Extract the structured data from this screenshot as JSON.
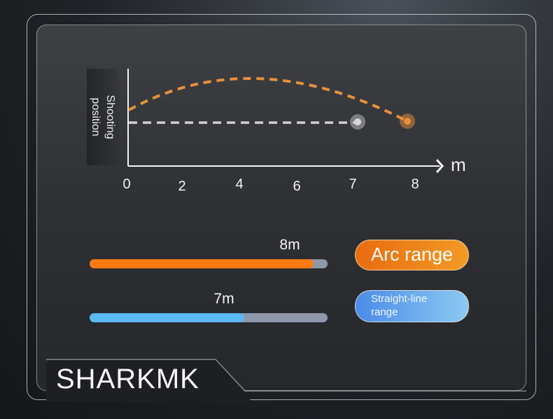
{
  "diagram": {
    "y_axis_label": "Shooting\nposition",
    "x_unit": "m",
    "x_ticks": [
      "0",
      "2",
      "4",
      "6",
      "7",
      "8"
    ],
    "arc_landing": 8,
    "straight_landing": 7,
    "colors": {
      "arc": "#e8903c",
      "straight": "#d0d0d0"
    }
  },
  "ranges": [
    {
      "value_label": "8m",
      "legend": "Arc range",
      "fill_percent": 94,
      "color": "#ff7a10"
    },
    {
      "value_label": "7m",
      "legend": "Straight-line\nrange",
      "fill_percent": 65,
      "color": "#5ab8f5"
    }
  ],
  "brand": "SHARKMK"
}
